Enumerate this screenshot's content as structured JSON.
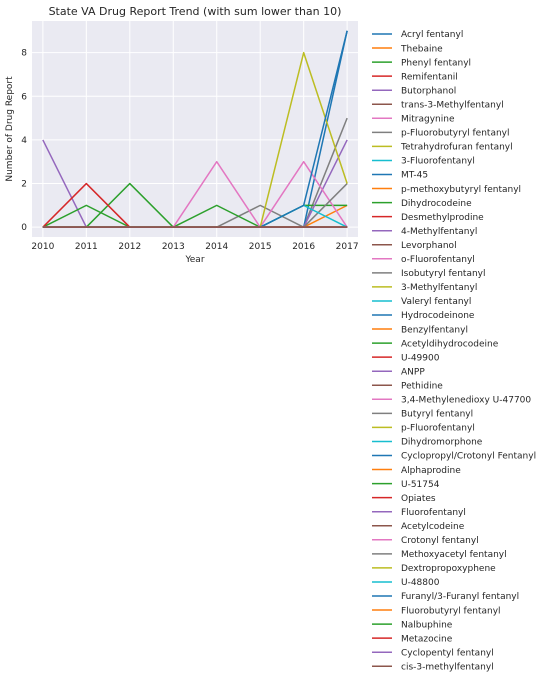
{
  "chart_data": {
    "type": "line",
    "title": "State VA Drug Report Trend (with sum lower than 10)",
    "xlabel": "Year",
    "ylabel": "Number of Drug Report",
    "x": [
      2010,
      2011,
      2012,
      2013,
      2014,
      2015,
      2016,
      2017
    ],
    "xlim": [
      2009.75,
      2017.25
    ],
    "ylim": [
      -0.45,
      9.45
    ],
    "yticks": [
      0,
      2,
      4,
      6,
      8
    ],
    "grid": true,
    "legend_position": "outside-right",
    "background_color": "#eaeaf2",
    "series": [
      {
        "name": "Acryl fentanyl",
        "color": "#1f77b4",
        "values": [
          0,
          0,
          0,
          0,
          0,
          0,
          0,
          0
        ]
      },
      {
        "name": "Thebaine",
        "color": "#ff7f0e",
        "values": [
          0,
          0,
          0,
          0,
          0,
          0,
          0,
          0
        ]
      },
      {
        "name": "Phenyl fentanyl",
        "color": "#2ca02c",
        "values": [
          0,
          0,
          0,
          0,
          0,
          0,
          0,
          0
        ]
      },
      {
        "name": "Remifentanil",
        "color": "#d62728",
        "values": [
          0,
          0,
          0,
          0,
          0,
          0,
          0,
          0
        ]
      },
      {
        "name": "Butorphanol",
        "color": "#9467bd",
        "values": [
          4,
          0,
          0,
          0,
          0,
          0,
          0,
          0
        ]
      },
      {
        "name": "trans-3-Methylfentanyl",
        "color": "#8c564b",
        "values": [
          0,
          0,
          0,
          0,
          0,
          0,
          0,
          0
        ]
      },
      {
        "name": "Mitragynine",
        "color": "#e377c2",
        "values": [
          0,
          0,
          0,
          0,
          0,
          0,
          0,
          0
        ]
      },
      {
        "name": "p-Fluorobutyryl fentanyl",
        "color": "#7f7f7f",
        "values": [
          0,
          0,
          0,
          0,
          0,
          0,
          0,
          0
        ]
      },
      {
        "name": "Tetrahydrofuran fentanyl",
        "color": "#bcbd22",
        "values": [
          0,
          0,
          0,
          0,
          0,
          0,
          0,
          0
        ]
      },
      {
        "name": "3-Fluorofentanyl",
        "color": "#17becf",
        "values": [
          0,
          0,
          0,
          0,
          0,
          0,
          0,
          0
        ]
      },
      {
        "name": "MT-45",
        "color": "#1f77b4",
        "values": [
          0,
          0,
          0,
          0,
          0,
          0,
          0,
          0
        ]
      },
      {
        "name": "p-methoxybutyryl fentanyl",
        "color": "#ff7f0e",
        "values": [
          0,
          0,
          0,
          0,
          0,
          0,
          0,
          0
        ]
      },
      {
        "name": "Dihydrocodeine",
        "color": "#2ca02c",
        "values": [
          0,
          1,
          0,
          0,
          0,
          0,
          0,
          0
        ]
      },
      {
        "name": "Desmethylprodine",
        "color": "#d62728",
        "values": [
          0,
          0,
          0,
          0,
          0,
          0,
          0,
          0
        ]
      },
      {
        "name": "4-Methylfentanyl",
        "color": "#9467bd",
        "values": [
          0,
          0,
          0,
          0,
          0,
          0,
          0,
          0
        ]
      },
      {
        "name": "Levorphanol",
        "color": "#8c564b",
        "values": [
          0,
          0,
          0,
          0,
          0,
          0,
          0,
          0
        ]
      },
      {
        "name": "o-Fluorofentanyl",
        "color": "#e377c2",
        "values": [
          0,
          0,
          0,
          0,
          0,
          0,
          0,
          0
        ]
      },
      {
        "name": "Isobutyryl fentanyl",
        "color": "#7f7f7f",
        "values": [
          0,
          0,
          0,
          0,
          0,
          0,
          0,
          0
        ]
      },
      {
        "name": "3-Methylfentanyl",
        "color": "#bcbd22",
        "values": [
          0,
          0,
          0,
          0,
          0,
          0,
          0,
          0
        ]
      },
      {
        "name": "Valeryl fentanyl",
        "color": "#17becf",
        "values": [
          0,
          0,
          0,
          0,
          0,
          0,
          0,
          0
        ]
      },
      {
        "name": "Hydrocodeinone",
        "color": "#1f77b4",
        "values": [
          0,
          0,
          0,
          0,
          0,
          0,
          0,
          0
        ]
      },
      {
        "name": "Benzylfentanyl",
        "color": "#ff7f0e",
        "values": [
          0,
          0,
          0,
          0,
          0,
          0,
          0,
          0
        ]
      },
      {
        "name": "Acetyldihydrocodeine",
        "color": "#2ca02c",
        "values": [
          0,
          0,
          2,
          0,
          0,
          0,
          0,
          0
        ]
      },
      {
        "name": "U-49900",
        "color": "#d62728",
        "values": [
          0,
          0,
          0,
          0,
          0,
          0,
          0,
          0
        ]
      },
      {
        "name": "ANPP",
        "color": "#9467bd",
        "values": [
          0,
          0,
          0,
          0,
          0,
          0,
          0,
          0
        ]
      },
      {
        "name": "Pethidine",
        "color": "#8c564b",
        "values": [
          0,
          0,
          0,
          0,
          0,
          0,
          0,
          0
        ]
      },
      {
        "name": "3,4-Methylenedioxy U-47700",
        "color": "#e377c2",
        "values": [
          0,
          0,
          0,
          0,
          0,
          0,
          0,
          0
        ]
      },
      {
        "name": "Butyryl fentanyl",
        "color": "#7f7f7f",
        "values": [
          0,
          0,
          0,
          0,
          0,
          1,
          0,
          5
        ]
      },
      {
        "name": "p-Fluorofentanyl",
        "color": "#bcbd22",
        "values": [
          0,
          0,
          0,
          0,
          0,
          0,
          0,
          0
        ]
      },
      {
        "name": "Dihydromorphone",
        "color": "#17becf",
        "values": [
          0,
          0,
          0,
          0,
          0,
          0,
          0,
          0
        ]
      },
      {
        "name": "Cyclopropyl/Crotonyl Fentanyl",
        "color": "#1f77b4",
        "values": [
          0,
          0,
          0,
          0,
          0,
          0,
          0,
          9
        ]
      },
      {
        "name": "Alphaprodine",
        "color": "#ff7f0e",
        "values": [
          0,
          0,
          0,
          0,
          0,
          0,
          0,
          1
        ]
      },
      {
        "name": "U-51754",
        "color": "#2ca02c",
        "values": [
          0,
          0,
          0,
          0,
          1,
          0,
          1,
          1
        ]
      },
      {
        "name": "Opiates",
        "color": "#d62728",
        "values": [
          0,
          2,
          0,
          0,
          0,
          0,
          0,
          0
        ]
      },
      {
        "name": "Fluorofentanyl",
        "color": "#9467bd",
        "values": [
          0,
          0,
          0,
          0,
          0,
          0,
          0,
          4
        ]
      },
      {
        "name": "Acetylcodeine",
        "color": "#8c564b",
        "values": [
          0,
          0,
          0,
          0,
          0,
          0,
          0,
          0
        ]
      },
      {
        "name": "Crotonyl fentanyl",
        "color": "#e377c2",
        "values": [
          0,
          0,
          0,
          0,
          3,
          0,
          3,
          0
        ]
      },
      {
        "name": "Methoxyacetyl fentanyl",
        "color": "#7f7f7f",
        "values": [
          0,
          0,
          0,
          0,
          0,
          0,
          0,
          2
        ]
      },
      {
        "name": "Dextropropoxyphene",
        "color": "#bcbd22",
        "values": [
          0,
          0,
          0,
          0,
          0,
          0,
          8,
          2
        ]
      },
      {
        "name": "U-48800",
        "color": "#17becf",
        "values": [
          0,
          0,
          0,
          0,
          0,
          0,
          1,
          0
        ]
      },
      {
        "name": "Furanyl/3-Furanyl fentanyl",
        "color": "#1f77b4",
        "values": [
          0,
          0,
          0,
          0,
          0,
          0,
          1,
          9
        ]
      },
      {
        "name": "Fluorobutyryl fentanyl",
        "color": "#ff7f0e",
        "values": [
          0,
          0,
          0,
          0,
          0,
          0,
          0,
          0
        ]
      },
      {
        "name": "Nalbuphine",
        "color": "#2ca02c",
        "values": [
          0,
          0,
          0,
          0,
          0,
          0,
          0,
          0
        ]
      },
      {
        "name": "Metazocine",
        "color": "#d62728",
        "values": [
          0,
          0,
          0,
          0,
          0,
          0,
          0,
          0
        ]
      },
      {
        "name": "Cyclopentyl fentanyl",
        "color": "#9467bd",
        "values": [
          0,
          0,
          0,
          0,
          0,
          0,
          0,
          0
        ]
      },
      {
        "name": "cis-3-methylfentanyl",
        "color": "#8c564b",
        "values": [
          0,
          0,
          0,
          0,
          0,
          0,
          0,
          0
        ]
      }
    ]
  }
}
